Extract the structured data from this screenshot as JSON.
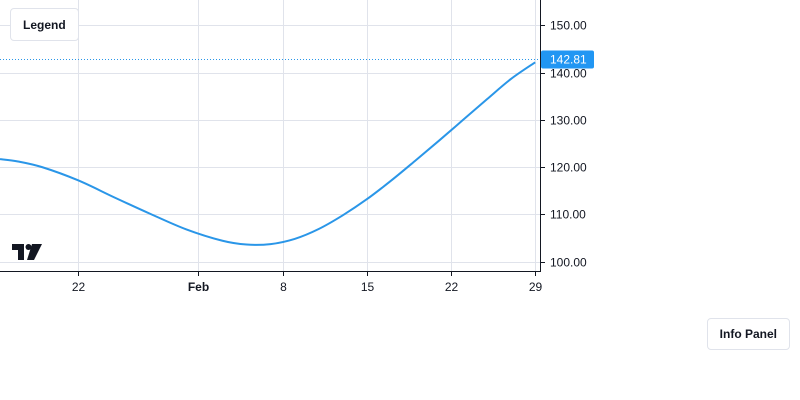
{
  "legend": {
    "label": "Legend"
  },
  "info_panel": {
    "label": "Info Panel"
  },
  "logo": {
    "icon": "tradingview-logo-icon"
  },
  "colors": {
    "line": "#2a96e8",
    "grid": "#e0e3eb",
    "axis": "#131722",
    "price_tag_bg": "#2196f3",
    "price_tag_text": "#ffffff",
    "crosshair": "#2a96e8"
  },
  "chart_data": {
    "type": "line",
    "title": "",
    "xlabel": "",
    "ylabel": "",
    "x_tick_labels": [
      {
        "label": "22",
        "day": 22,
        "bold": false
      },
      {
        "label": "Feb",
        "day": 32,
        "bold": true
      },
      {
        "label": "8",
        "day": 39,
        "bold": false
      },
      {
        "label": "15",
        "day": 46,
        "bold": false
      },
      {
        "label": "22",
        "day": 53,
        "bold": false
      },
      {
        "label": "29",
        "day": 60,
        "bold": false
      }
    ],
    "y_tick_labels": [
      "100.00",
      "110.00",
      "120.00",
      "130.00",
      "140.00",
      "150.00"
    ],
    "y_ticks": [
      100,
      110,
      120,
      130,
      140,
      150
    ],
    "xlim": [
      15.5,
      60.4
    ],
    "ylim": [
      98,
      155.4
    ],
    "grid": true,
    "last_value": 142.81,
    "last_value_label": "142.81",
    "series": [
      {
        "days": [
          15.5,
          17,
          19,
          22,
          25,
          28,
          31,
          34,
          36,
          38,
          40,
          42,
          44,
          46,
          48,
          50,
          52,
          54,
          56,
          58,
          60
        ],
        "values": [
          121.7,
          121.2,
          120.0,
          117.2,
          113.6,
          110.1,
          106.8,
          104.4,
          103.6,
          103.7,
          104.8,
          106.9,
          109.8,
          113.2,
          117.1,
          121.3,
          125.6,
          130.0,
          134.4,
          138.7,
          142.2
        ]
      }
    ]
  }
}
